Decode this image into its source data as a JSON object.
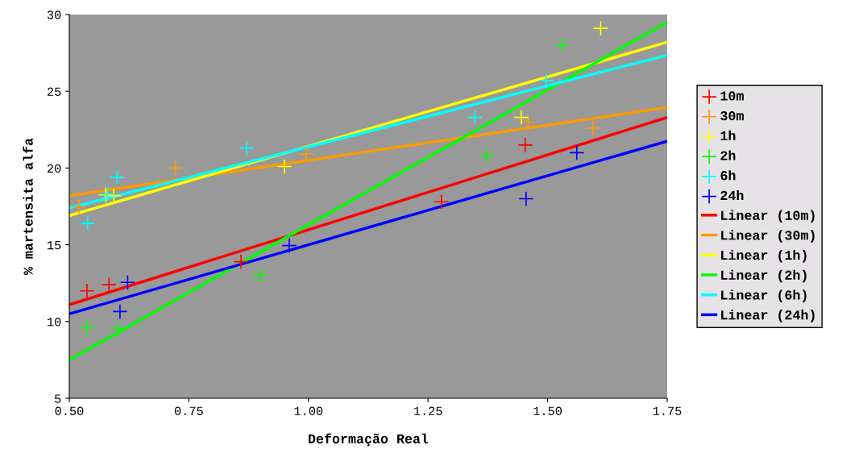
{
  "chart_data": {
    "type": "scatter",
    "xlabel": "Deformação Real",
    "ylabel": "% martensita alfa",
    "xlim": [
      0.5,
      1.75
    ],
    "xticks": [
      {
        "value": 0.5,
        "label": "0.50"
      },
      {
        "value": 0.75,
        "label": "0.75"
      },
      {
        "value": 1.0,
        "label": "1.00"
      },
      {
        "value": 1.25,
        "label": "1.25"
      },
      {
        "value": 1.5,
        "label": "1.50"
      },
      {
        "value": 1.75,
        "label": "1.75"
      }
    ],
    "ylim": [
      5,
      30
    ],
    "yticks": [
      5,
      10,
      15,
      20,
      25,
      30
    ],
    "grid": false,
    "legend": "right",
    "marker": "cross",
    "series": [
      {
        "name": "10m",
        "color": "#ff0000",
        "x": [
          0.537,
          0.583,
          0.859,
          1.278,
          1.453
        ],
        "values": [
          12.0,
          12.4,
          13.9,
          17.8,
          21.5
        ]
      },
      {
        "name": "30m",
        "color": "#ff9900",
        "x": [
          0.52,
          0.722,
          0.995,
          1.459,
          1.595
        ],
        "values": [
          17.5,
          20.0,
          20.9,
          23.0,
          22.6
        ]
      },
      {
        "name": "1h",
        "color": "#ffff00",
        "x": [
          0.576,
          0.593,
          0.95,
          1.445,
          1.611
        ],
        "values": [
          18.25,
          18.2,
          20.1,
          23.3,
          29.1
        ]
      },
      {
        "name": "2h",
        "color": "#00ff00",
        "x": [
          0.538,
          0.603,
          0.899,
          1.373,
          1.53
        ],
        "values": [
          9.6,
          9.55,
          13.0,
          20.8,
          28.0
        ]
      },
      {
        "name": "6h",
        "color": "#00ffff",
        "x": [
          0.538,
          0.58,
          0.6,
          0.871,
          1.348,
          1.497
        ],
        "values": [
          16.4,
          18.3,
          19.4,
          21.3,
          23.3,
          25.7
        ]
      },
      {
        "name": "24h",
        "color": "#0000ff",
        "x": [
          0.606,
          0.622,
          0.96,
          1.455,
          1.561
        ],
        "values": [
          10.65,
          12.55,
          14.95,
          18.0,
          21.0
        ]
      },
      {
        "name": "Linear (10m)",
        "type": "line",
        "marker": "none",
        "color": "#ff0000",
        "x": [
          0.5,
          1.75
        ],
        "values": [
          11.1,
          23.3
        ]
      },
      {
        "name": "Linear (30m)",
        "type": "line",
        "marker": "none",
        "color": "#ff9900",
        "x": [
          0.5,
          1.75
        ],
        "values": [
          18.2,
          23.95
        ]
      },
      {
        "name": "Linear (1h)",
        "type": "line",
        "marker": "none",
        "color": "#ffff00",
        "x": [
          0.5,
          1.75
        ],
        "values": [
          16.9,
          28.2
        ]
      },
      {
        "name": "Linear (2h)",
        "type": "line",
        "marker": "none",
        "color": "#00ff00",
        "x": [
          0.5,
          1.75
        ],
        "values": [
          7.5,
          29.5
        ]
      },
      {
        "name": "Linear (6h)",
        "type": "line",
        "marker": "none",
        "color": "#00ffff",
        "x": [
          0.5,
          1.75
        ],
        "values": [
          17.4,
          27.35
        ]
      },
      {
        "name": "Linear (24h)",
        "type": "line",
        "marker": "none",
        "color": "#0000ff",
        "x": [
          0.5,
          1.75
        ],
        "values": [
          10.5,
          21.75
        ]
      }
    ]
  }
}
